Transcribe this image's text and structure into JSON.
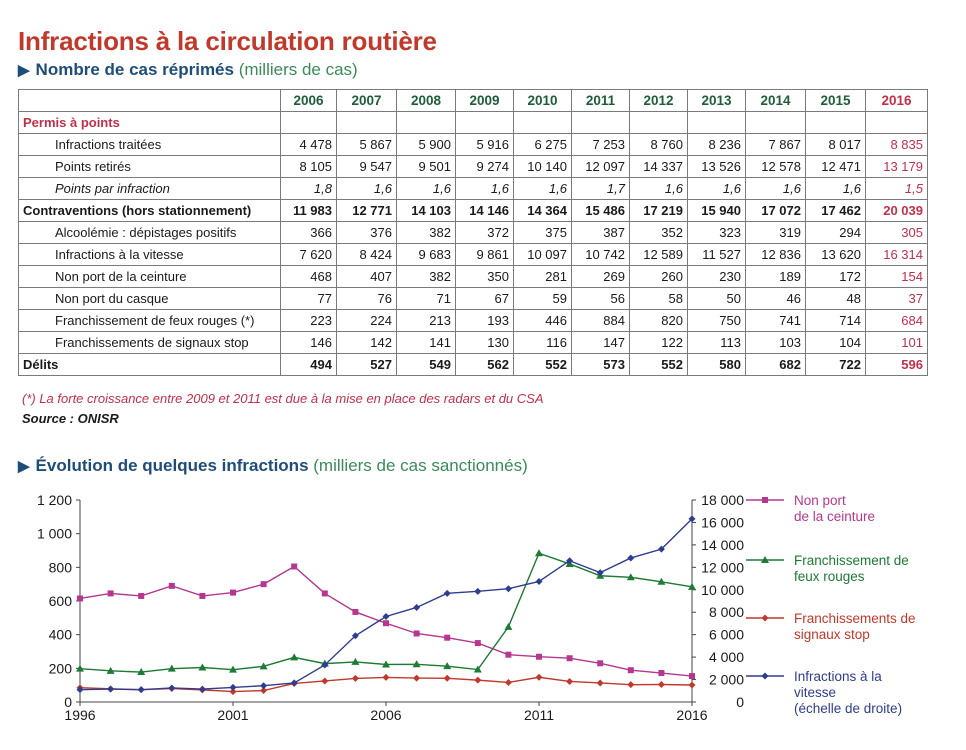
{
  "title": "Infractions à la circulation routière",
  "subtitle": "Nombre de cas réprimés",
  "subtitle_unit": "(milliers de cas)",
  "table": {
    "years": [
      "2006",
      "2007",
      "2008",
      "2009",
      "2010",
      "2011",
      "2012",
      "2013",
      "2014",
      "2015",
      "2016"
    ],
    "rows": [
      {
        "label": "Permis à points",
        "style": "section",
        "values": []
      },
      {
        "label": "Infractions traitées",
        "style": "indent",
        "values": [
          "4 478",
          "5 867",
          "5 900",
          "5 916",
          "6 275",
          "7 253",
          "8 760",
          "8 236",
          "7 867",
          "8 017",
          "8 835"
        ]
      },
      {
        "label": "Points retirés",
        "style": "indent",
        "values": [
          "8 105",
          "9 547",
          "9 501",
          "9 274",
          "10 140",
          "12 097",
          "14 337",
          "13 526",
          "12 578",
          "12 471",
          "13 179"
        ]
      },
      {
        "label": "Points par infraction",
        "style": "indent italic",
        "values": [
          "1,8",
          "1,6",
          "1,6",
          "1,6",
          "1,6",
          "1,7",
          "1,6",
          "1,6",
          "1,6",
          "1,6",
          "1,5"
        ]
      },
      {
        "label": "Contraventions (hors stationnement)",
        "style": "bold",
        "values": [
          "11 983",
          "12 771",
          "14 103",
          "14 146",
          "14 364",
          "15 486",
          "17 219",
          "15 940",
          "17 072",
          "17 462",
          "20 039"
        ]
      },
      {
        "label": "Alcoolémie : dépistages positifs",
        "style": "indent",
        "values": [
          "366",
          "376",
          "382",
          "372",
          "375",
          "387",
          "352",
          "323",
          "319",
          "294",
          "305"
        ]
      },
      {
        "label": "Infractions à la vitesse",
        "style": "indent",
        "values": [
          "7 620",
          "8 424",
          "9 683",
          "9 861",
          "10 097",
          "10 742",
          "12 589",
          "11 527",
          "12 836",
          "13 620",
          "16 314"
        ]
      },
      {
        "label": "Non port de la ceinture",
        "style": "indent",
        "values": [
          "468",
          "407",
          "382",
          "350",
          "281",
          "269",
          "260",
          "230",
          "189",
          "172",
          "154"
        ]
      },
      {
        "label": "Non port du casque",
        "style": "indent",
        "values": [
          "77",
          "76",
          "71",
          "67",
          "59",
          "56",
          "58",
          "50",
          "46",
          "48",
          "37"
        ]
      },
      {
        "label": "Franchissement de feux rouges (*)",
        "style": "indent",
        "values": [
          "223",
          "224",
          "213",
          "193",
          "446",
          "884",
          "820",
          "750",
          "741",
          "714",
          "684"
        ]
      },
      {
        "label": "Franchissements de signaux stop",
        "style": "indent",
        "values": [
          "146",
          "142",
          "141",
          "130",
          "116",
          "147",
          "122",
          "113",
          "103",
          "104",
          "101"
        ]
      },
      {
        "label": "Délits",
        "style": "bold",
        "values": [
          "494",
          "527",
          "549",
          "562",
          "552",
          "573",
          "552",
          "580",
          "682",
          "722",
          "596"
        ]
      }
    ]
  },
  "note": "(*) La forte croissance entre 2009 et 2011 est due à la mise en place des radars et du CSA",
  "source": "Source : ONISR",
  "chart_title": "Évolution de quelques infractions",
  "chart_unit": "(milliers de cas sanctionnés)",
  "chart_data": {
    "type": "line",
    "x": [
      1996,
      1997,
      1998,
      1999,
      2000,
      2001,
      2002,
      2003,
      2004,
      2005,
      2006,
      2007,
      2008,
      2009,
      2010,
      2011,
      2012,
      2013,
      2014,
      2015,
      2016
    ],
    "x_ticks": [
      "1996",
      "2001",
      "2006",
      "2011",
      "2016"
    ],
    "xlim": [
      1996,
      2016
    ],
    "ylim_left": [
      0,
      1200
    ],
    "y_ticks_left": [
      "0",
      "200",
      "400",
      "600",
      "800",
      "1 000",
      "1 200"
    ],
    "ylim_right": [
      0,
      18000
    ],
    "y_ticks_right": [
      "0",
      "2 000",
      "4 000",
      "6 000",
      "8 000",
      "10 000",
      "12 000",
      "14 000",
      "16 000",
      "18 000"
    ],
    "series": [
      {
        "name": "Non port\nde la ceinture",
        "axis": "left",
        "color": "#b5378f",
        "marker": "square",
        "values": [
          615,
          645,
          630,
          690,
          630,
          650,
          700,
          805,
          645,
          535,
          468,
          407,
          382,
          350,
          281,
          269,
          260,
          230,
          189,
          172,
          154
        ]
      },
      {
        "name": "Franchissement de\nfeux rouges",
        "axis": "left",
        "color": "#1e7a34",
        "marker": "triangle",
        "values": [
          198,
          185,
          178,
          198,
          205,
          192,
          212,
          265,
          228,
          238,
          223,
          224,
          213,
          193,
          446,
          884,
          820,
          750,
          741,
          714,
          684
        ]
      },
      {
        "name": "Franchissements de\nsignaux stop",
        "axis": "left",
        "color": "#c0392b",
        "marker": "diamond",
        "values": [
          85,
          78,
          73,
          80,
          72,
          62,
          68,
          110,
          125,
          140,
          146,
          142,
          141,
          130,
          116,
          147,
          122,
          113,
          103,
          104,
          101
        ]
      },
      {
        "name": "Infractions à la\nvitesse\n(échelle de droite)",
        "axis": "right",
        "color": "#2e3d8f",
        "marker": "diamond",
        "values": [
          1100,
          1150,
          1100,
          1250,
          1150,
          1300,
          1450,
          1700,
          3300,
          5900,
          7620,
          8424,
          9683,
          9861,
          10097,
          10742,
          12589,
          11527,
          12836,
          13620,
          16314
        ]
      }
    ]
  }
}
